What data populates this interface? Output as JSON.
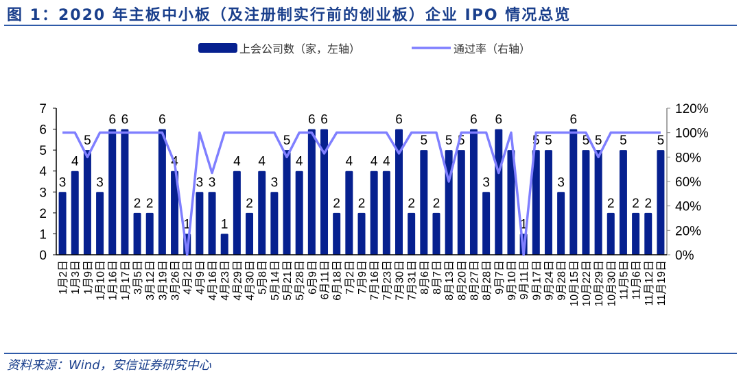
{
  "title": "图 1：2020 年主板中小板（及注册制实行前的创业板）企业 IPO 情况总览",
  "source": "资料来源：Wind，安信证券研究中心",
  "chart_data": {
    "type": "bar+line",
    "title": "图 1：2020 年主板中小板（及注册制实行前的创业板）企业 IPO 情况总览",
    "legend_placement": "top",
    "grid": false,
    "colors": {
      "bar": "#06208f",
      "line": "#7f7fff"
    },
    "categories": [
      "1月2日",
      "1月3日",
      "1月9日",
      "1月10日",
      "1月16日",
      "1月17日",
      "3月5日",
      "3月12日",
      "3月19日",
      "3月26日",
      "4月2日",
      "4月9日",
      "4月16日",
      "4月23日",
      "4月29日",
      "4月30日",
      "5月8日",
      "5月14日",
      "5月21日",
      "5月28日",
      "6月9日",
      "6月11日",
      "6月18日",
      "7月2日",
      "7月9日",
      "7月16日",
      "7月23日",
      "7月30日",
      "7月31日",
      "8月6日",
      "8月7日",
      "8月13日",
      "8月20日",
      "8月27日",
      "8月28日",
      "9月7日",
      "9月10日",
      "9月11日",
      "9月17日",
      "9月24日",
      "9月28日",
      "10月15日",
      "10月22日",
      "10月29日",
      "10月30日",
      "11月5日",
      "11月6日",
      "11月12日",
      "11月19日"
    ],
    "series": [
      {
        "name": "上会公司数（家，左轴）",
        "type": "bar",
        "axis": "left",
        "values": [
          3,
          4,
          5,
          3,
          6,
          6,
          2,
          2,
          6,
          4,
          1,
          3,
          3,
          1,
          4,
          2,
          4,
          3,
          5,
          4,
          6,
          6,
          2,
          4,
          2,
          4,
          4,
          6,
          2,
          5,
          2,
          5,
          5,
          6,
          3,
          6,
          5,
          1,
          5,
          5,
          3,
          6,
          5,
          5,
          2,
          5,
          2,
          2,
          5
        ],
        "labels_shown": [
          1,
          1,
          1,
          1,
          1,
          1,
          1,
          1,
          1,
          1,
          1,
          1,
          1,
          1,
          1,
          1,
          1,
          1,
          1,
          1,
          1,
          1,
          1,
          1,
          1,
          1,
          1,
          1,
          1,
          1,
          1,
          1,
          1,
          1,
          1,
          1,
          0,
          1,
          1,
          1,
          1,
          1,
          1,
          1,
          1,
          1,
          1,
          1,
          1
        ]
      },
      {
        "name": "通过率（右轴）",
        "type": "line",
        "axis": "right",
        "values": [
          100,
          100,
          80,
          100,
          100,
          100,
          100,
          100,
          100,
          75,
          0,
          100,
          67,
          100,
          100,
          100,
          100,
          100,
          80,
          100,
          100,
          83,
          100,
          100,
          100,
          100,
          100,
          83,
          100,
          100,
          100,
          60,
          100,
          100,
          100,
          67,
          100,
          0,
          100,
          100,
          100,
          100,
          100,
          80,
          100,
          100,
          100,
          100,
          100
        ]
      }
    ],
    "y_left": {
      "range": [
        0,
        7
      ],
      "ticks": [
        "0",
        "1",
        "2",
        "3",
        "4",
        "5",
        "6",
        "7"
      ]
    },
    "y_right": {
      "range": [
        0,
        120
      ],
      "unit": "%",
      "ticks": [
        "0%",
        "20%",
        "40%",
        "60%",
        "80%",
        "100%",
        "120%"
      ]
    }
  }
}
